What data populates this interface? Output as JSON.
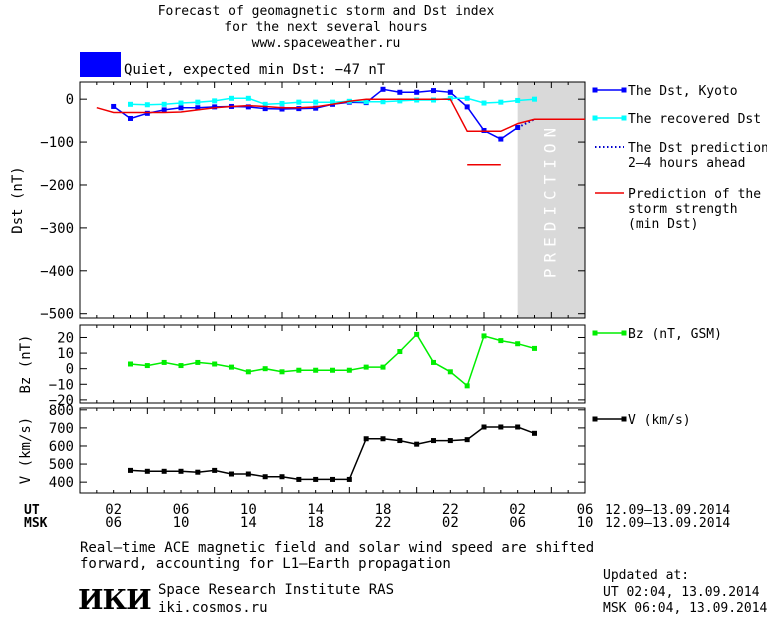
{
  "header": {
    "line1": "Forecast of geomagnetic storm and Dst index",
    "line2": "for the next several hours",
    "line3": "www.spaceweather.ru"
  },
  "status": {
    "text": "Quiet, expected min Dst: −47 nT",
    "color": "#0000ff"
  },
  "chart_data": [
    {
      "type": "line",
      "ylabel": "Dst (nT)",
      "ylim": [
        -510,
        40
      ],
      "yticks": [
        "0",
        "−100",
        "−200",
        "−300",
        "−400",
        "−500"
      ],
      "ytick_values": [
        0,
        -100,
        -200,
        -300,
        -400,
        -500
      ],
      "prediction_label": "PREDICTION",
      "prediction_range": [
        0,
        4
      ],
      "series": [
        {
          "name": "The Dst, Kyoto",
          "color": "#0000ff",
          "marker": "square",
          "x": [
            -24,
            -23,
            -22,
            -21,
            -20,
            -19,
            -18,
            -17,
            -16,
            -15,
            -14,
            -13,
            -12,
            -11,
            -10,
            -9,
            -8,
            -7,
            -6,
            -5,
            -4,
            -3,
            -2,
            -1,
            0
          ],
          "y": [
            -17,
            -45,
            -33,
            -25,
            -20,
            -20,
            -18,
            -17,
            -18,
            -22,
            -23,
            -22,
            -21,
            -12,
            -7,
            -8,
            23,
            16,
            16,
            20,
            16,
            -18,
            -73,
            -93,
            -66
          ]
        },
        {
          "name": "The recovered Dst",
          "color": "#00ffff",
          "marker": "square",
          "x": [
            -23,
            -22,
            -21,
            -20,
            -19,
            -18,
            -17,
            -16,
            -15,
            -14,
            -13,
            -12,
            -11,
            -10,
            -9,
            -8,
            -7,
            -6,
            -5,
            -4,
            -3,
            -2,
            -1,
            0,
            1
          ],
          "y": [
            -12,
            -13,
            -12,
            -9,
            -7,
            -4,
            2,
            2,
            -12,
            -10,
            -7,
            -7,
            -7,
            -5,
            -6,
            -6,
            -4,
            -2,
            -2,
            2,
            2,
            -9,
            -7,
            -3,
            0
          ]
        },
        {
          "name": "The Dst prediction\n2–4 hours ahead",
          "color": "#0000cc",
          "dotted": true,
          "x": [
            0,
            1
          ],
          "y": [
            -66,
            -47
          ]
        },
        {
          "name": "Prediction of the\nstorm strength\n(min Dst)",
          "color": "#ee0000",
          "x": [
            -25,
            -24,
            -23,
            -22,
            -21,
            -20,
            -19,
            -18,
            -17,
            -16,
            -15,
            -14,
            -13,
            -12,
            -11,
            -10,
            -9,
            -8,
            -7,
            -6,
            -5,
            -4,
            -3,
            -2,
            -1,
            0,
            1,
            2,
            3,
            4
          ],
          "y": [
            -20,
            -31,
            -31,
            -31,
            -31,
            -30,
            -25,
            -20,
            -17,
            -15,
            -17,
            -20,
            -20,
            -18,
            -12,
            -5,
            0,
            0,
            0,
            0,
            0,
            0,
            -75,
            -75,
            -75,
            -57,
            -47,
            -47,
            -47,
            -47
          ]
        },
        {
          "name": "",
          "color": "#ee0000",
          "x": [
            -3,
            -1
          ],
          "y": [
            -153,
            -153
          ]
        }
      ]
    },
    {
      "type": "line",
      "ylabel": "Bz (nT)",
      "ylim": [
        -22,
        28
      ],
      "yticks": [
        "20",
        "10",
        "0",
        "−10",
        "−20"
      ],
      "ytick_values": [
        20,
        10,
        0,
        -10,
        -20
      ],
      "series": [
        {
          "name": "Bz (nT, GSM)",
          "color": "#00ee00",
          "marker": "square",
          "x": [
            -23,
            -22,
            -21,
            -20,
            -19,
            -18,
            -17,
            -16,
            -15,
            -14,
            -13,
            -12,
            -11,
            -10,
            -9,
            -8,
            -7,
            -6,
            -5,
            -4,
            -3,
            -2,
            -1,
            0,
            1
          ],
          "y": [
            3,
            2,
            4,
            2,
            4,
            3,
            1,
            -2,
            0,
            -2,
            -1,
            -1,
            -1,
            -1,
            1,
            1,
            11,
            22,
            4,
            -2,
            -11,
            21,
            18,
            16,
            13
          ]
        }
      ]
    },
    {
      "type": "line",
      "ylabel": "V (km/s)",
      "ylim": [
        340,
        810
      ],
      "yticks": [
        "800",
        "700",
        "600",
        "500",
        "400"
      ],
      "ytick_values": [
        800,
        700,
        600,
        500,
        400
      ],
      "series": [
        {
          "name": "V (km/s)",
          "color": "#000000",
          "marker": "square",
          "x": [
            -23,
            -22,
            -21,
            -20,
            -19,
            -18,
            -17,
            -16,
            -15,
            -14,
            -13,
            -12,
            -11,
            -10,
            -9,
            -8,
            -7,
            -6,
            -5,
            -4,
            -3,
            -2,
            -1,
            0,
            1
          ],
          "y": [
            465,
            460,
            460,
            460,
            455,
            465,
            445,
            445,
            430,
            430,
            415,
            415,
            415,
            415,
            640,
            640,
            630,
            610,
            630,
            630,
            635,
            705,
            705,
            705,
            670
          ]
        }
      ]
    }
  ],
  "time_axis": {
    "ut_label": "UT",
    "msk_label": "MSK",
    "ut_ticks": [
      "02",
      "06",
      "10",
      "14",
      "18",
      "22",
      "02",
      "06"
    ],
    "msk_ticks": [
      "06",
      "10",
      "14",
      "18",
      "22",
      "02",
      "06",
      "10"
    ],
    "ut_range": "12.09–13.09.2014",
    "msk_range": "12.09–13.09.2014"
  },
  "note": {
    "line1": "Real–time ACE magnetic field and solar wind speed are shifted",
    "line2": "forward, accounting for L1–Earth propagation"
  },
  "institute": {
    "logo": "ИКИ",
    "name": "Space Research Institute RAS",
    "url": "iki.cosmos.ru"
  },
  "updated": {
    "label": "Updated at:",
    "ut": "UT   02:04, 13.09.2014",
    "msk": "MSK 06:04, 13.09.2014"
  }
}
